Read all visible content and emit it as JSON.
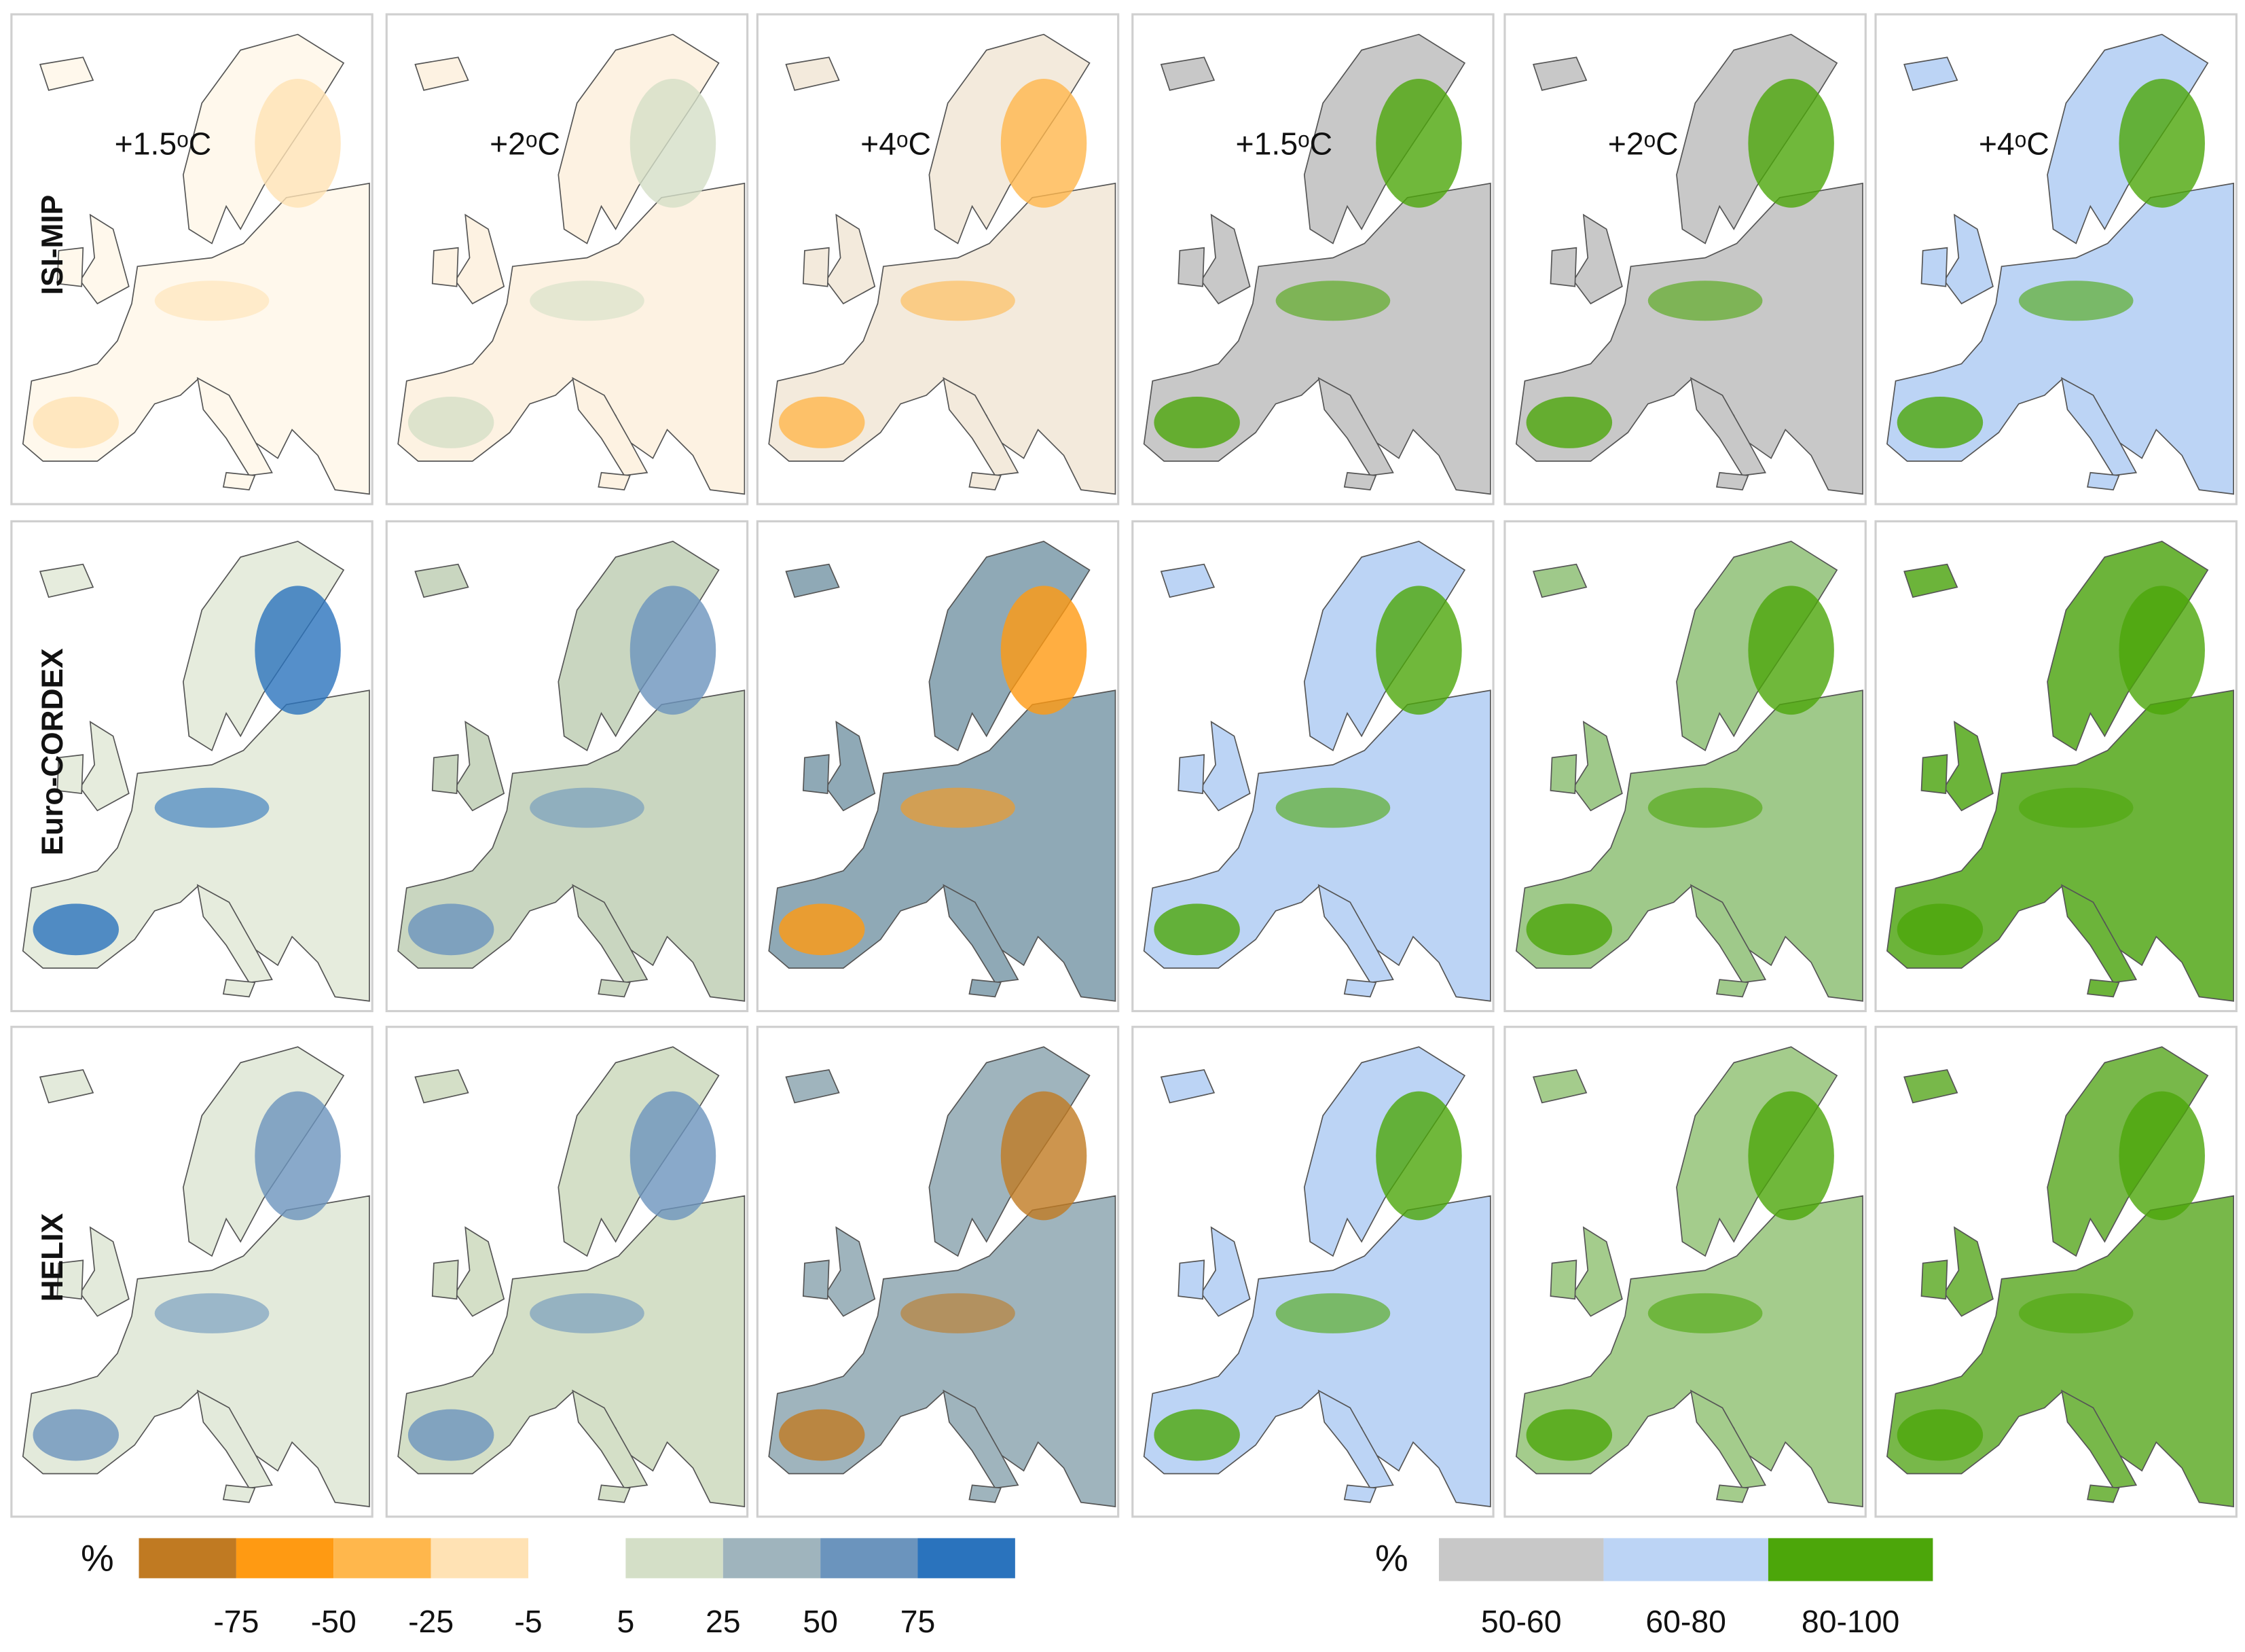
{
  "row_labels": [
    "ISI-MIP",
    "Euro-CORDEX",
    "HELIX"
  ],
  "panel_labels": [
    "+1.5ᵒC",
    "+2ᵒC",
    "+4ᵒC",
    "+1.5ᵒC",
    "+2ᵒC",
    "+4ᵒC"
  ],
  "legend_change": {
    "unit": "%",
    "colors": [
      "#c07a22",
      "#ff9a12",
      "#ffb74c",
      "#ffe2b4",
      "#ffffff",
      "#d4dfc7",
      "#9fb4bd",
      "#6b94bd",
      "#2a73bd"
    ],
    "ticks": [
      -75,
      -50,
      -25,
      -5,
      5,
      25,
      50,
      75
    ]
  },
  "legend_agreement": {
    "unit": "%",
    "colors": [
      "#c8c8c8",
      "#bcd4f5",
      "#4ca60a"
    ],
    "labels": [
      "50-60",
      "60-80",
      "80-100"
    ]
  }
}
